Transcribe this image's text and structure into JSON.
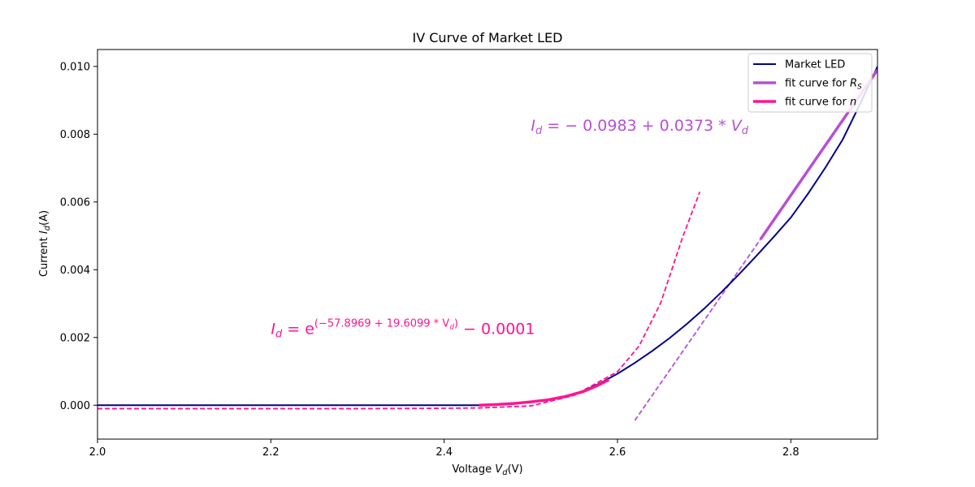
{
  "chart_data": {
    "type": "line",
    "title": "IV Curve of Market LED",
    "xlabel": {
      "prefix": "Voltage ",
      "var": "V",
      "sub": "d",
      "suffix": "(V)"
    },
    "ylabel": {
      "prefix": "Current ",
      "var": "I",
      "sub": "d",
      "suffix": "(A)"
    },
    "xlim": [
      2.0,
      2.9
    ],
    "ylim": [
      -0.001,
      0.0105
    ],
    "x_ticks": [
      2.0,
      2.2,
      2.4,
      2.6,
      2.8
    ],
    "x_tick_labels": [
      "2.0",
      "2.2",
      "2.4",
      "2.6",
      "2.8"
    ],
    "y_ticks": [
      0.0,
      0.002,
      0.004,
      0.006,
      0.008,
      0.01
    ],
    "y_tick_labels": [
      "0.000",
      "0.002",
      "0.004",
      "0.006",
      "0.008",
      "0.010"
    ],
    "grid": false,
    "legend_position": "top-right",
    "legend": [
      {
        "label": "Market LED",
        "color": "#00008b",
        "style": "solid-thin"
      },
      {
        "label": "fit curve for ",
        "math": "R",
        "math_sub": "S",
        "color": "#b84fd4",
        "style": "solid-thick"
      },
      {
        "label": "fit curve for ",
        "math": "n",
        "math_sub": "",
        "color": "#ff1493",
        "style": "solid-thick"
      }
    ],
    "series": [
      {
        "name": "Market LED",
        "color": "#00008b",
        "x": [
          2.0,
          2.1,
          2.2,
          2.3,
          2.4,
          2.44,
          2.46,
          2.48,
          2.5,
          2.52,
          2.54,
          2.56,
          2.58,
          2.6,
          2.62,
          2.64,
          2.66,
          2.68,
          2.7,
          2.72,
          2.74,
          2.76,
          2.78,
          2.8,
          2.82,
          2.84,
          2.86,
          2.88,
          2.9
        ],
        "y": [
          0.0,
          0.0,
          0.0,
          0.0,
          0.0,
          0.0,
          2e-05,
          5e-05,
          0.0001,
          0.00016,
          0.00026,
          0.00042,
          0.00065,
          0.00093,
          0.00125,
          0.0016,
          0.00198,
          0.0024,
          0.00285,
          0.00334,
          0.00386,
          0.0044,
          0.00496,
          0.00554,
          0.00625,
          0.00702,
          0.00785,
          0.0089,
          0.01
        ]
      },
      {
        "name": "fit curve for Rs",
        "color": "#b84fd4",
        "x": [
          2.765,
          2.9
        ],
        "y": [
          0.0049,
          0.0099
        ]
      },
      {
        "name": "fit curve for n",
        "color": "#ff1493",
        "x": [
          2.44,
          2.46,
          2.48,
          2.5,
          2.52,
          2.54,
          2.56,
          2.575,
          2.59
        ],
        "y": [
          0.0,
          2e-05,
          5e-05,
          0.0001,
          0.00016,
          0.00026,
          0.0004,
          0.00056,
          0.00075
        ]
      }
    ],
    "extrapolations": [
      {
        "name": "Rs fit line extension",
        "color": "#b84fd4",
        "x": [
          2.62,
          2.765
        ],
        "y": [
          -0.00045,
          0.0049
        ]
      },
      {
        "name": "n fit curve extension",
        "color": "#ff1493",
        "x": [
          2.0,
          2.1,
          2.2,
          2.3,
          2.4,
          2.44,
          2.5,
          2.55,
          2.6,
          2.625,
          2.65,
          2.675,
          2.695
        ],
        "y": [
          -0.0001,
          -0.0001,
          -0.0001,
          -0.0001,
          -9e-05,
          -8e-05,
          -2e-05,
          0.00029,
          0.00099,
          0.00175,
          0.00303,
          0.00495,
          0.0063
        ]
      }
    ],
    "annotations": [
      {
        "id": "rs",
        "color": "#b84fd4",
        "var": "I",
        "sub": "d",
        "text": " = − 0.0983 + 0.0373 * ",
        "var2": "V",
        "sub2": "d",
        "anchor_x": 2.5,
        "anchor_y": 0.0081
      },
      {
        "id": "n",
        "color": "#ff1493",
        "var": "I",
        "sub": "d",
        "text": " = e",
        "sup": "(−57.8969 + 19.6099 * V",
        "sup_sub": "d",
        "sup_end": ")",
        "tail": " − 0.0001",
        "anchor_x": 2.2,
        "anchor_y": 0.0021
      }
    ]
  }
}
